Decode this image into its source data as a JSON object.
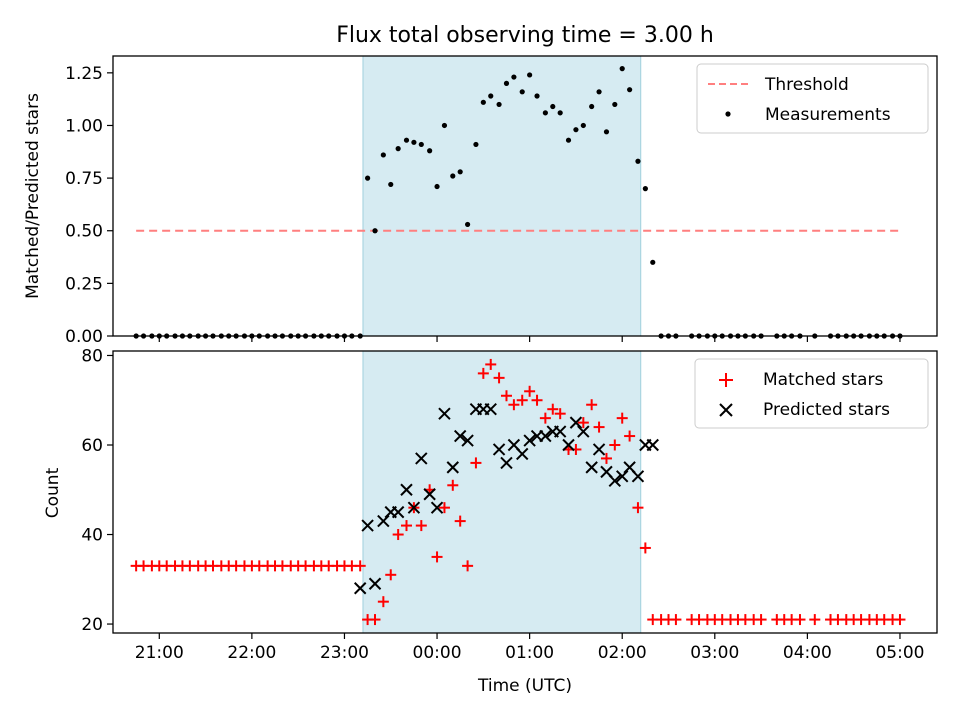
{
  "chart_data": [
    {
      "type": "scatter",
      "title": "Flux total observing time = 3.00 h",
      "xlabel": "",
      "ylabel": "Matched/Predicted stars",
      "xlim": [
        20.5,
        29.4
      ],
      "ylim": [
        0,
        1.33
      ],
      "yticks": [
        0,
        0.25,
        0.5,
        0.75,
        1.0,
        1.25
      ],
      "ytick_labels": [
        "0.00",
        "0.25",
        "0.50",
        "0.75",
        "1.00",
        "1.25"
      ],
      "shaded_span": [
        23.2,
        26.2
      ],
      "legend_position": "top-right",
      "series": [
        {
          "name": "Threshold",
          "style": "dashed-line",
          "color": "#ff7f7f",
          "x": [
            20.75,
            29.0
          ],
          "y": [
            0.5,
            0.5
          ]
        },
        {
          "name": "Measurements",
          "style": "dot",
          "color": "#000000",
          "x": [
            20.75,
            20.83,
            20.92,
            21.0,
            21.08,
            21.17,
            21.25,
            21.33,
            21.42,
            21.5,
            21.58,
            21.67,
            21.75,
            21.83,
            21.92,
            22.0,
            22.08,
            22.17,
            22.25,
            22.33,
            22.42,
            22.5,
            22.58,
            22.67,
            22.75,
            22.83,
            22.92,
            23.0,
            23.08,
            23.17,
            23.25,
            23.33,
            23.42,
            23.5,
            23.58,
            23.67,
            23.75,
            23.83,
            23.92,
            24.0,
            24.08,
            24.17,
            24.25,
            24.33,
            24.42,
            24.5,
            24.58,
            24.67,
            24.75,
            24.83,
            24.92,
            25.0,
            25.08,
            25.17,
            25.25,
            25.33,
            25.42,
            25.5,
            25.58,
            25.67,
            25.75,
            25.83,
            25.92,
            26.0,
            26.08,
            26.17,
            26.25,
            26.33,
            26.42,
            26.5,
            26.58,
            26.75,
            26.83,
            26.92,
            27.0,
            27.08,
            27.17,
            27.25,
            27.33,
            27.42,
            27.5,
            27.67,
            27.75,
            27.83,
            27.92,
            28.08,
            28.25,
            28.33,
            28.42,
            28.5,
            28.58,
            28.67,
            28.75,
            28.83,
            28.92,
            29.0
          ],
          "y": [
            0,
            0,
            0,
            0,
            0,
            0,
            0,
            0,
            0,
            0,
            0,
            0,
            0,
            0,
            0,
            0,
            0,
            0,
            0,
            0,
            0,
            0,
            0,
            0,
            0,
            0,
            0,
            0,
            0,
            0,
            0.75,
            0.5,
            0.86,
            0.72,
            0.89,
            0.93,
            0.92,
            0.91,
            0.88,
            0.71,
            1.0,
            0.76,
            0.78,
            0.53,
            0.91,
            1.11,
            1.14,
            1.1,
            1.2,
            1.23,
            1.16,
            1.24,
            1.14,
            1.06,
            1.09,
            1.06,
            0.93,
            0.98,
            1.0,
            1.09,
            1.16,
            0.97,
            1.1,
            1.27,
            1.17,
            0.83,
            0.7,
            0.35,
            0,
            0,
            0,
            0,
            0,
            0,
            0,
            0,
            0,
            0,
            0,
            0,
            0,
            0,
            0,
            0,
            0,
            0,
            0,
            0,
            0,
            0,
            0,
            0,
            0,
            0,
            0,
            0
          ]
        }
      ]
    },
    {
      "type": "scatter",
      "title": "",
      "xlabel": "Time (UTC)",
      "ylabel": "Count",
      "xlim": [
        20.5,
        29.4
      ],
      "ylim": [
        18,
        81
      ],
      "yticks": [
        20,
        40,
        60,
        80
      ],
      "ytick_labels": [
        "20",
        "40",
        "60",
        "80"
      ],
      "xticks": [
        21,
        22,
        23,
        24,
        25,
        26,
        27,
        28,
        29
      ],
      "xtick_labels": [
        "21:00",
        "22:00",
        "23:00",
        "00:00",
        "01:00",
        "02:00",
        "03:00",
        "04:00",
        "05:00"
      ],
      "shaded_span": [
        23.2,
        26.2
      ],
      "legend_position": "top-right",
      "series": [
        {
          "name": "Matched stars",
          "marker": "plus",
          "color": "#ff0000",
          "x": [
            20.75,
            20.83,
            20.92,
            21.0,
            21.08,
            21.17,
            21.25,
            21.33,
            21.42,
            21.5,
            21.58,
            21.67,
            21.75,
            21.83,
            21.92,
            22.0,
            22.08,
            22.17,
            22.25,
            22.33,
            22.42,
            22.5,
            22.58,
            22.67,
            22.75,
            22.83,
            22.92,
            23.0,
            23.08,
            23.17,
            23.25,
            23.33,
            23.42,
            23.5,
            23.58,
            23.67,
            23.75,
            23.83,
            23.92,
            24.0,
            24.08,
            24.17,
            24.25,
            24.33,
            24.42,
            24.5,
            24.58,
            24.67,
            24.75,
            24.83,
            24.92,
            25.0,
            25.08,
            25.17,
            25.25,
            25.33,
            25.42,
            25.5,
            25.58,
            25.67,
            25.75,
            25.83,
            25.92,
            26.0,
            26.08,
            26.17,
            26.25,
            26.33,
            26.42,
            26.5,
            26.58,
            26.75,
            26.83,
            26.92,
            27.0,
            27.08,
            27.17,
            27.25,
            27.33,
            27.42,
            27.5,
            27.67,
            27.75,
            27.83,
            27.92,
            28.08,
            28.25,
            28.33,
            28.42,
            28.5,
            28.58,
            28.67,
            28.75,
            28.83,
            28.92,
            29.0
          ],
          "y": [
            33,
            33,
            33,
            33,
            33,
            33,
            33,
            33,
            33,
            33,
            33,
            33,
            33,
            33,
            33,
            33,
            33,
            33,
            33,
            33,
            33,
            33,
            33,
            33,
            33,
            33,
            33,
            33,
            33,
            33,
            21,
            21,
            25,
            31,
            40,
            42,
            46,
            42,
            50,
            35,
            46,
            51,
            43,
            33,
            56,
            76,
            78,
            75,
            71,
            69,
            70,
            72,
            70,
            66,
            68,
            67,
            59,
            59,
            65,
            69,
            64,
            57,
            60,
            66,
            62,
            46,
            37,
            21,
            21,
            21,
            21,
            21,
            21,
            21,
            21,
            21,
            21,
            21,
            21,
            21,
            21,
            21,
            21,
            21,
            21,
            21,
            21,
            21,
            21,
            21,
            21,
            21,
            21,
            21,
            21,
            21
          ]
        },
        {
          "name": "Predicted stars",
          "marker": "x",
          "color": "#000000",
          "x": [
            23.17,
            23.25,
            23.33,
            23.42,
            23.5,
            23.58,
            23.67,
            23.75,
            23.83,
            23.92,
            24.0,
            24.08,
            24.17,
            24.25,
            24.33,
            24.42,
            24.5,
            24.58,
            24.67,
            24.75,
            24.83,
            24.92,
            25.0,
            25.08,
            25.17,
            25.25,
            25.33,
            25.42,
            25.5,
            25.58,
            25.67,
            25.75,
            25.83,
            25.92,
            26.0,
            26.08,
            26.17,
            26.25,
            26.33
          ],
          "y": [
            28,
            42,
            29,
            43,
            45,
            45,
            50,
            46,
            57,
            49,
            46,
            67,
            55,
            62,
            61,
            68,
            68,
            68,
            59,
            56,
            60,
            58,
            61,
            62,
            62,
            63,
            63,
            60,
            65,
            63,
            55,
            59,
            54,
            52,
            53,
            55,
            53,
            60,
            60
          ]
        }
      ]
    }
  ]
}
